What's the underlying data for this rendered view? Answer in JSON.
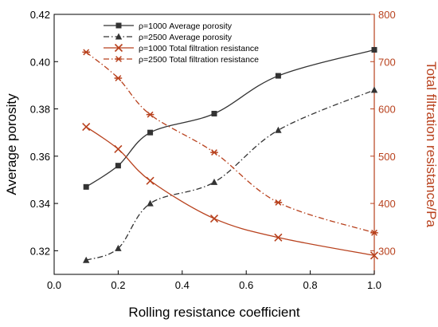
{
  "chart_data": {
    "type": "line",
    "xlabel": "Rolling resistance coefficient",
    "ylabel": "Average porosity",
    "y2label": "Total filtration resistance/Pa",
    "xlim": [
      0.0,
      1.0
    ],
    "ylim": [
      0.31,
      0.42
    ],
    "y2lim": [
      250,
      800
    ],
    "x_ticks": [
      "0.0",
      "0.2",
      "0.4",
      "0.6",
      "0.8",
      "1.0"
    ],
    "y_ticks": [
      "0.32",
      "0.34",
      "0.36",
      "0.38",
      "0.40",
      "0.42"
    ],
    "y2_ticks": [
      "300",
      "400",
      "500",
      "600",
      "700",
      "800"
    ],
    "grid": false,
    "legend_position": "top-center",
    "colors": {
      "left_axis": "#000000",
      "right_axis": "#b8411d",
      "porosity": "#333333",
      "resistance": "#b8411d"
    },
    "series": [
      {
        "name": "ρ=1000 Average porosity",
        "axis": "left",
        "marker": "square",
        "dash": "solid",
        "color": "#333333",
        "x": [
          0.1,
          0.2,
          0.3,
          0.5,
          0.7,
          1.0
        ],
        "y": [
          0.347,
          0.356,
          0.37,
          0.378,
          0.394,
          0.405
        ]
      },
      {
        "name": "ρ=2500 Average porosity",
        "axis": "left",
        "marker": "triangle",
        "dash": "dashdot",
        "color": "#333333",
        "x": [
          0.1,
          0.2,
          0.3,
          0.5,
          0.7,
          1.0
        ],
        "y": [
          0.316,
          0.321,
          0.34,
          0.349,
          0.371,
          0.388
        ]
      },
      {
        "name": "ρ=1000 Total filtration resistance",
        "axis": "right",
        "marker": "x",
        "dash": "solid",
        "color": "#b8411d",
        "x": [
          0.1,
          0.2,
          0.3,
          0.5,
          0.7,
          1.0
        ],
        "y": [
          562,
          515,
          448,
          368,
          328,
          290
        ]
      },
      {
        "name": "ρ=2500 Total filtration resistance",
        "axis": "right",
        "marker": "asterisk",
        "dash": "dashdot",
        "color": "#b8411d",
        "x": [
          0.1,
          0.2,
          0.3,
          0.5,
          0.7,
          1.0
        ],
        "y": [
          720,
          665,
          588,
          508,
          402,
          338
        ]
      }
    ]
  }
}
